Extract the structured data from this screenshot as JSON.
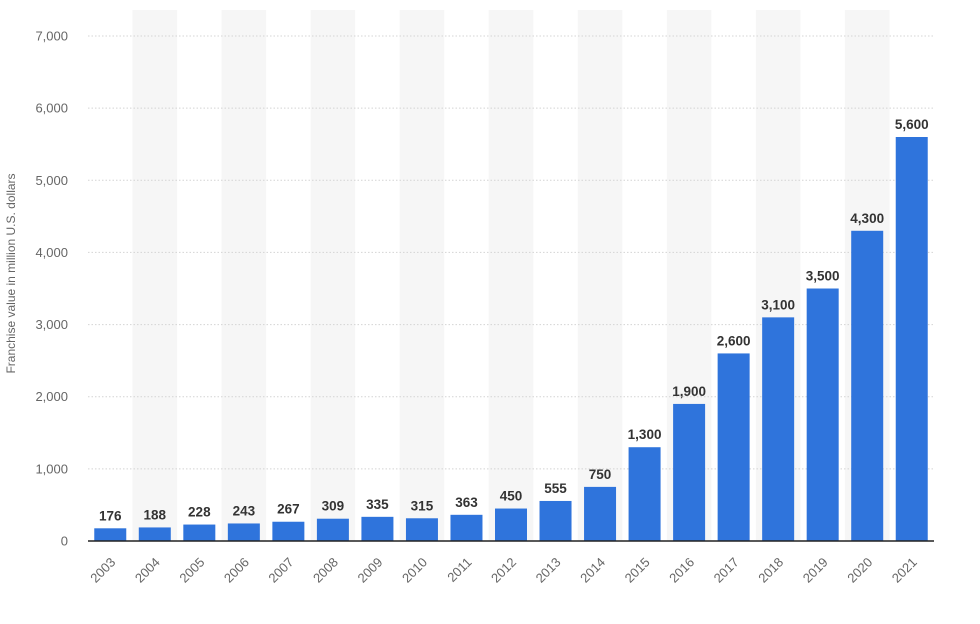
{
  "chart_data": {
    "type": "bar",
    "categories": [
      "2003",
      "2004",
      "2005",
      "2006",
      "2007",
      "2008",
      "2009",
      "2010",
      "2011",
      "2012",
      "2013",
      "2014",
      "2015",
      "2016",
      "2017",
      "2018",
      "2019",
      "2020",
      "2021"
    ],
    "values": [
      176,
      188,
      228,
      243,
      267,
      309,
      335,
      315,
      363,
      450,
      555,
      750,
      1300,
      1900,
      2600,
      3100,
      3500,
      4300,
      5600
    ],
    "value_labels": [
      "176",
      "188",
      "228",
      "243",
      "267",
      "309",
      "335",
      "315",
      "363",
      "450",
      "555",
      "750",
      "1,300",
      "1,900",
      "2,600",
      "3,100",
      "3,500",
      "4,300",
      "5,600"
    ],
    "ylabel": "Franchise value in million U.S. dollars",
    "xlabel": "",
    "ylim": [
      0,
      7000
    ],
    "yticks": [
      0,
      1000,
      2000,
      3000,
      4000,
      5000,
      6000,
      7000
    ],
    "ytick_labels": [
      "0",
      "1,000",
      "2,000",
      "3,000",
      "4,000",
      "5,000",
      "6,000",
      "7,000"
    ],
    "grid": true,
    "bar_color": "#2f74dc"
  }
}
